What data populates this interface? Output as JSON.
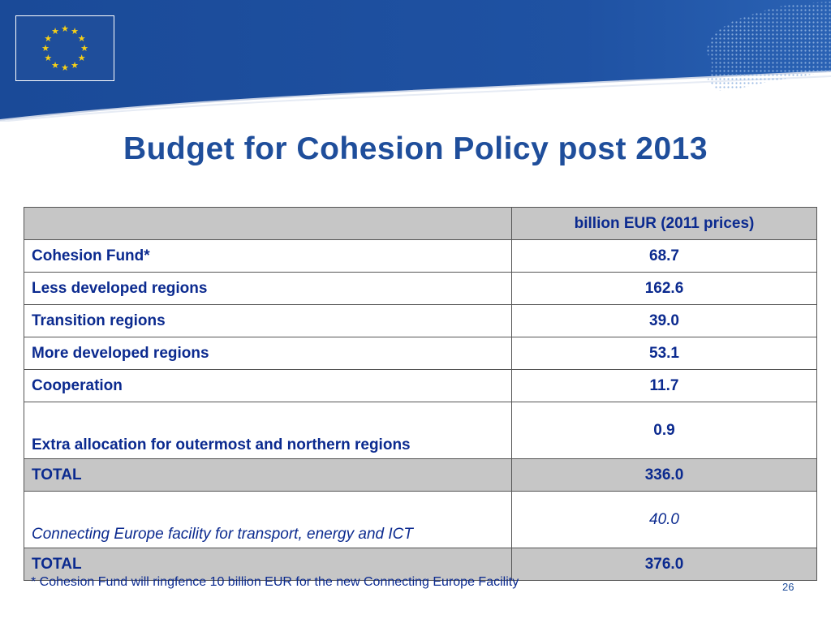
{
  "slide": {
    "title": "Budget for Cohesion Policy post 2013",
    "footnote": "* Cohesion Fund will ringfence 10 billion EUR for the new Connecting Europe Facility",
    "page_number": "26"
  },
  "colors": {
    "header_blue": "#1f4e9b",
    "text_blue": "#0b2a8f",
    "star_yellow": "#f7d117",
    "shade_gray": "#c6c6c6"
  },
  "icons": {
    "flag": "eu-flag-icon",
    "map": "europe-map-icon"
  },
  "table": {
    "header": {
      "label": "",
      "value": "billion EUR (2011 prices)"
    },
    "rows": [
      {
        "label": "Cohesion Fund*",
        "value": "68.7"
      },
      {
        "label": "Less developed regions",
        "value": "162.6"
      },
      {
        "label": "Transition regions",
        "value": "39.0"
      },
      {
        "label": "More developed regions",
        "value": "53.1"
      },
      {
        "label": "Cooperation",
        "value": "11.7"
      },
      {
        "label": "Extra allocation for outermost and northern regions",
        "value": "0.9"
      },
      {
        "label": "TOTAL",
        "value": "336.0"
      },
      {
        "label": "Connecting Europe facility for transport, energy and ICT",
        "value": "40.0"
      },
      {
        "label": "TOTAL",
        "value": "376.0"
      }
    ]
  }
}
